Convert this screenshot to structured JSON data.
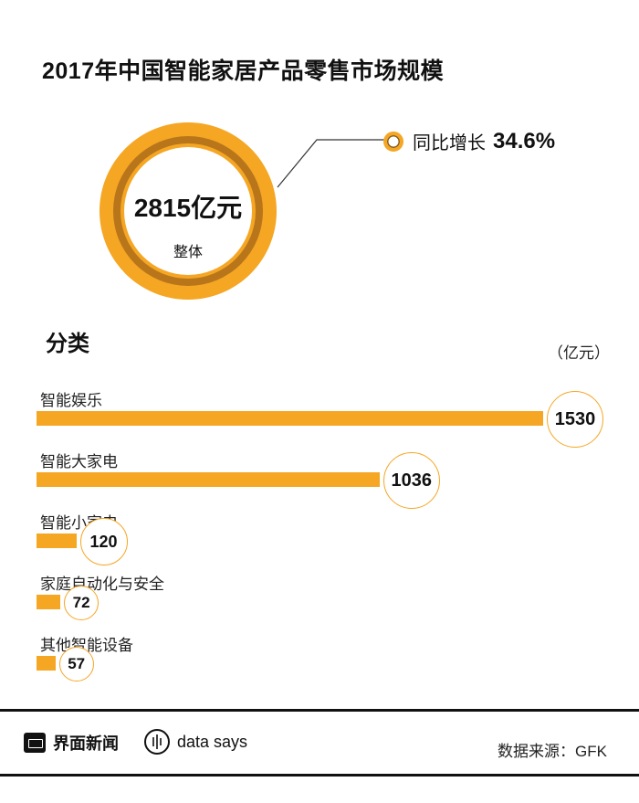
{
  "title": "2017年中国智能家居产品零售市场规模",
  "summary": {
    "total_value": "2815亿元",
    "total_label": "整体",
    "yoy_label": "同比增长",
    "yoy_value": "34.6%"
  },
  "section_title": "分类",
  "unit": "（亿元）",
  "colors": {
    "accent": "#f5a623",
    "ring_inner": "#b8751a",
    "text": "#111111"
  },
  "chart_data": {
    "type": "bar",
    "orientation": "horizontal",
    "categories": [
      "智能娱乐",
      "智能大家电",
      "智能小家电",
      "家庭自动化与安全",
      "其他智能设备"
    ],
    "values": [
      1530,
      1036,
      120,
      72,
      57
    ],
    "value_labels": [
      "1530",
      "1036",
      "120",
      "72",
      "57"
    ],
    "unit": "亿元"
  },
  "footer": {
    "brand": "界面新闻",
    "data_says": "data says",
    "source": "数据来源：GFK"
  }
}
